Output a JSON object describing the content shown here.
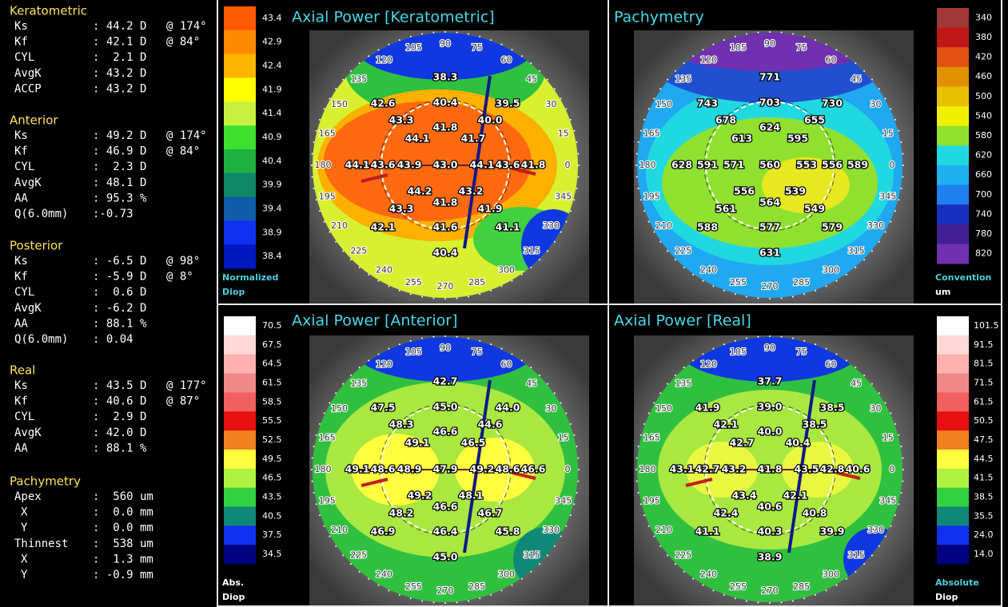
{
  "measurements": {
    "sections": [
      {
        "title": "Keratometric",
        "rows": [
          {
            "label": "Ks",
            "value": ": 44.2 D",
            "axis": "@ 174°"
          },
          {
            "label": "Kf",
            "value": ": 42.1 D",
            "axis": "@ 84°"
          },
          {
            "label": "CYL",
            "value": ":  2.1 D"
          },
          {
            "label": "AvgK",
            "value": ": 43.2 D"
          },
          {
            "label": "ACCP",
            "value": ": 43.2 D"
          }
        ]
      },
      {
        "title": "Anterior",
        "rows": [
          {
            "label": "Ks",
            "value": ": 49.2 D",
            "axis": "@ 174°"
          },
          {
            "label": "Kf",
            "value": ": 46.9 D",
            "axis": "@ 84°"
          },
          {
            "label": "CYL",
            "value": ":  2.3 D"
          },
          {
            "label": "AvgK",
            "value": ": 48.1 D"
          },
          {
            "label": "AA",
            "value": ": 95.3 %"
          },
          {
            "label": "Q(6.0mm)",
            "value": ":-0.73"
          }
        ]
      },
      {
        "title": "Posterior",
        "rows": [
          {
            "label": "Ks",
            "value": ": -6.5 D",
            "axis": "@ 98°"
          },
          {
            "label": "Kf",
            "value": ": -5.9 D",
            "axis": "@ 8°"
          },
          {
            "label": "CYL",
            "value": ":  0.6 D"
          },
          {
            "label": "AvgK",
            "value": ": -6.2 D"
          },
          {
            "label": "AA",
            "value": ": 88.1 %"
          },
          {
            "label": "Q(6.0mm)",
            "value": ": 0.04"
          }
        ]
      },
      {
        "title": "Real",
        "rows": [
          {
            "label": "Ks",
            "value": ": 43.5 D",
            "axis": "@ 177°"
          },
          {
            "label": "Kf",
            "value": ": 40.6 D",
            "axis": "@ 87°"
          },
          {
            "label": "CYL",
            "value": ":  2.9 D"
          },
          {
            "label": "AvgK",
            "value": ": 42.0 D"
          },
          {
            "label": "AA",
            "value": ": 88.1 %"
          }
        ]
      },
      {
        "title": "Pachymetry",
        "rows": [
          {
            "label": "Apex",
            "value": ":  560 um"
          },
          {
            "label": "X",
            "value": ":  0.0 mm"
          },
          {
            "label": "Y",
            "value": ":  0.0 mm"
          },
          {
            "label": "Thinnest",
            "value": ":  538 um"
          },
          {
            "label": "X",
            "value": ":  1.3 mm"
          },
          {
            "label": "Y",
            "value": ": -0.9 mm"
          }
        ]
      }
    ]
  },
  "polar_angles": [
    "0",
    "15",
    "30",
    "45",
    "60",
    "75",
    "90",
    "105",
    "120",
    "135",
    "150",
    "165",
    "180",
    "195",
    "210",
    "225",
    "240",
    "255",
    "270",
    "285",
    "300",
    "315",
    "330",
    "345"
  ],
  "maps": [
    {
      "title": "Axial Power [Keratometric]",
      "values": [
        "38.3",
        "42.6",
        "40.4",
        "39.5",
        "43.3",
        "40.0",
        "44.1",
        "41.8",
        "41.7",
        "44.1",
        "43.6",
        "43.9",
        "43.0",
        "44.1",
        "43.6",
        "41.8",
        "44.2",
        "41.8",
        "43.2",
        "43.3",
        "41.9",
        "42.1",
        "41.6",
        "41.1",
        "40.4"
      ],
      "scale": {
        "labels": [
          "43.4",
          "42.9",
          "42.4",
          "41.9",
          "41.4",
          "40.9",
          "40.4",
          "39.9",
          "39.4",
          "38.9",
          "38.4"
        ],
        "colors": [
          "#ff5a00",
          "#ff8a00",
          "#ffb400",
          "#ffff00",
          "#c8f040",
          "#40e030",
          "#20b040",
          "#108868",
          "#105ca8",
          "#1030f0",
          "#0018c0"
        ]
      },
      "unit": [
        "Normalized",
        "Diop"
      ],
      "unit_colors": [
        "#4fd0e0",
        "#4fd0e0"
      ]
    },
    {
      "title": "Pachymetry",
      "values": [
        "771",
        "743",
        "703",
        "730",
        "678",
        "655",
        "613",
        "624",
        "595",
        "628",
        "591",
        "571",
        "560",
        "553",
        "556",
        "589",
        "556",
        "564",
        "539",
        "561",
        "549",
        "588",
        "577",
        "579",
        "631"
      ],
      "scale": {
        "labels": [
          "340",
          "380",
          "420",
          "460",
          "500",
          "540",
          "580",
          "620",
          "660",
          "700",
          "740",
          "780",
          "820"
        ],
        "colors": [
          "#a03838",
          "#c01818",
          "#e05010",
          "#e09000",
          "#e8c000",
          "#f0f000",
          "#90e030",
          "#20d8e0",
          "#20b0f0",
          "#2080f0",
          "#1830c0",
          "#402090",
          "#7030b0"
        ]
      },
      "unit": [
        "Convention",
        "um"
      ],
      "unit_colors": [
        "#4fd0e0",
        "#ffffff"
      ]
    },
    {
      "title": "Axial Power [Anterior]",
      "values": [
        "42.7",
        "47.5",
        "45.0",
        "44.0",
        "48.3",
        "44.6",
        "49.1",
        "46.6",
        "46.5",
        "49.1",
        "48.6",
        "48.9",
        "47.9",
        "49.2",
        "48.6",
        "46.6",
        "49.2",
        "46.6",
        "48.1",
        "48.2",
        "46.7",
        "46.9",
        "46.4",
        "45.8",
        "45.0"
      ],
      "scale": {
        "labels": [
          "70.5",
          "67.5",
          "64.5",
          "61.5",
          "58.5",
          "55.5",
          "52.5",
          "49.5",
          "46.5",
          "43.5",
          "40.5",
          "37.5",
          "34.5"
        ],
        "colors": [
          "#ffffff",
          "#ffd8d8",
          "#ffb0b0",
          "#f08888",
          "#f06060",
          "#e81010",
          "#f08020",
          "#ffff40",
          "#b0f040",
          "#30d040",
          "#108878",
          "#1030f0",
          "#000080"
        ]
      },
      "unit": [
        "Abs.",
        "Diop"
      ],
      "unit_colors": [
        "#ffffff",
        "#ffffff"
      ]
    },
    {
      "title": "Axial Power [Real]",
      "values": [
        "37.7",
        "41.9",
        "39.0",
        "38.5",
        "42.1",
        "38.5",
        "42.7",
        "40.0",
        "40.4",
        "43.1",
        "42.7",
        "43.2",
        "41.8",
        "43.5",
        "42.8",
        "40.6",
        "43.4",
        "40.6",
        "42.1",
        "42.4",
        "40.8",
        "41.1",
        "40.3",
        "39.9",
        "38.9"
      ],
      "scale": {
        "labels": [
          "101.5",
          "91.5",
          "81.5",
          "71.5",
          "61.5",
          "50.5",
          "47.5",
          "44.5",
          "41.5",
          "38.5",
          "35.5",
          "24.0",
          "14.0"
        ],
        "colors": [
          "#ffffff",
          "#ffd8d8",
          "#ffb0b0",
          "#f08888",
          "#f06060",
          "#e81010",
          "#f08020",
          "#ffff40",
          "#b0f040",
          "#30d040",
          "#108878",
          "#1030f0",
          "#000080"
        ]
      },
      "unit": [
        "Absolute",
        "Diop"
      ],
      "unit_colors": [
        "#4fd0e0",
        "#ffffff"
      ]
    }
  ]
}
